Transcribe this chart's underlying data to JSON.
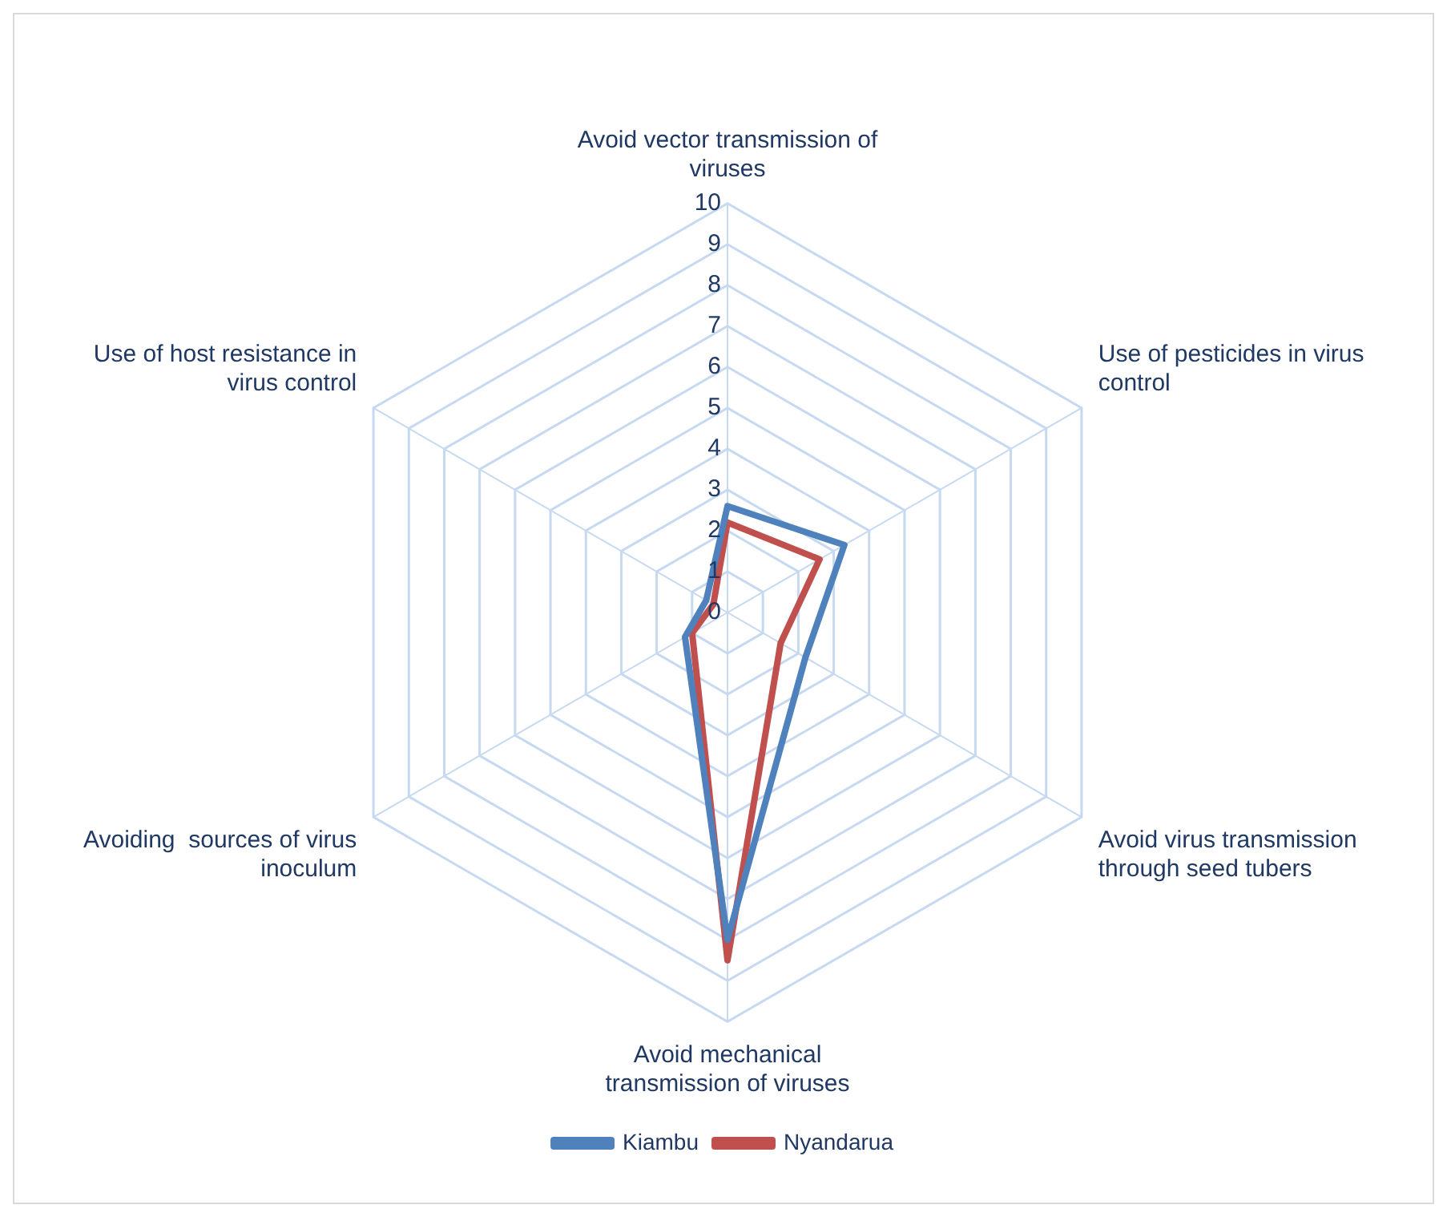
{
  "chart_data": {
    "type": "radar",
    "categories": [
      "Avoid vector transmission of viruses",
      "Use of pesticides in virus control",
      "Avoid virus transmission through seed tubers",
      "Avoid mechanical transmission of viruses",
      "Avoiding  sources of virus inoculum",
      "Use of host resistance in virus control"
    ],
    "series": [
      {
        "name": "Kiambu",
        "color": "#4f81bd",
        "values": [
          2.6,
          3.3,
          2.2,
          8,
          1.2,
          0.6
        ]
      },
      {
        "name": "Nyandarua",
        "color": "#c0504d",
        "values": [
          2.2,
          2.6,
          1.5,
          8.5,
          1,
          0.4
        ]
      }
    ],
    "ylim": [
      0,
      10
    ],
    "yticks": [
      0,
      1,
      2,
      3,
      4,
      5,
      6,
      7,
      8,
      9,
      10
    ],
    "grid": true,
    "legend": "bottom",
    "marker": "none"
  }
}
